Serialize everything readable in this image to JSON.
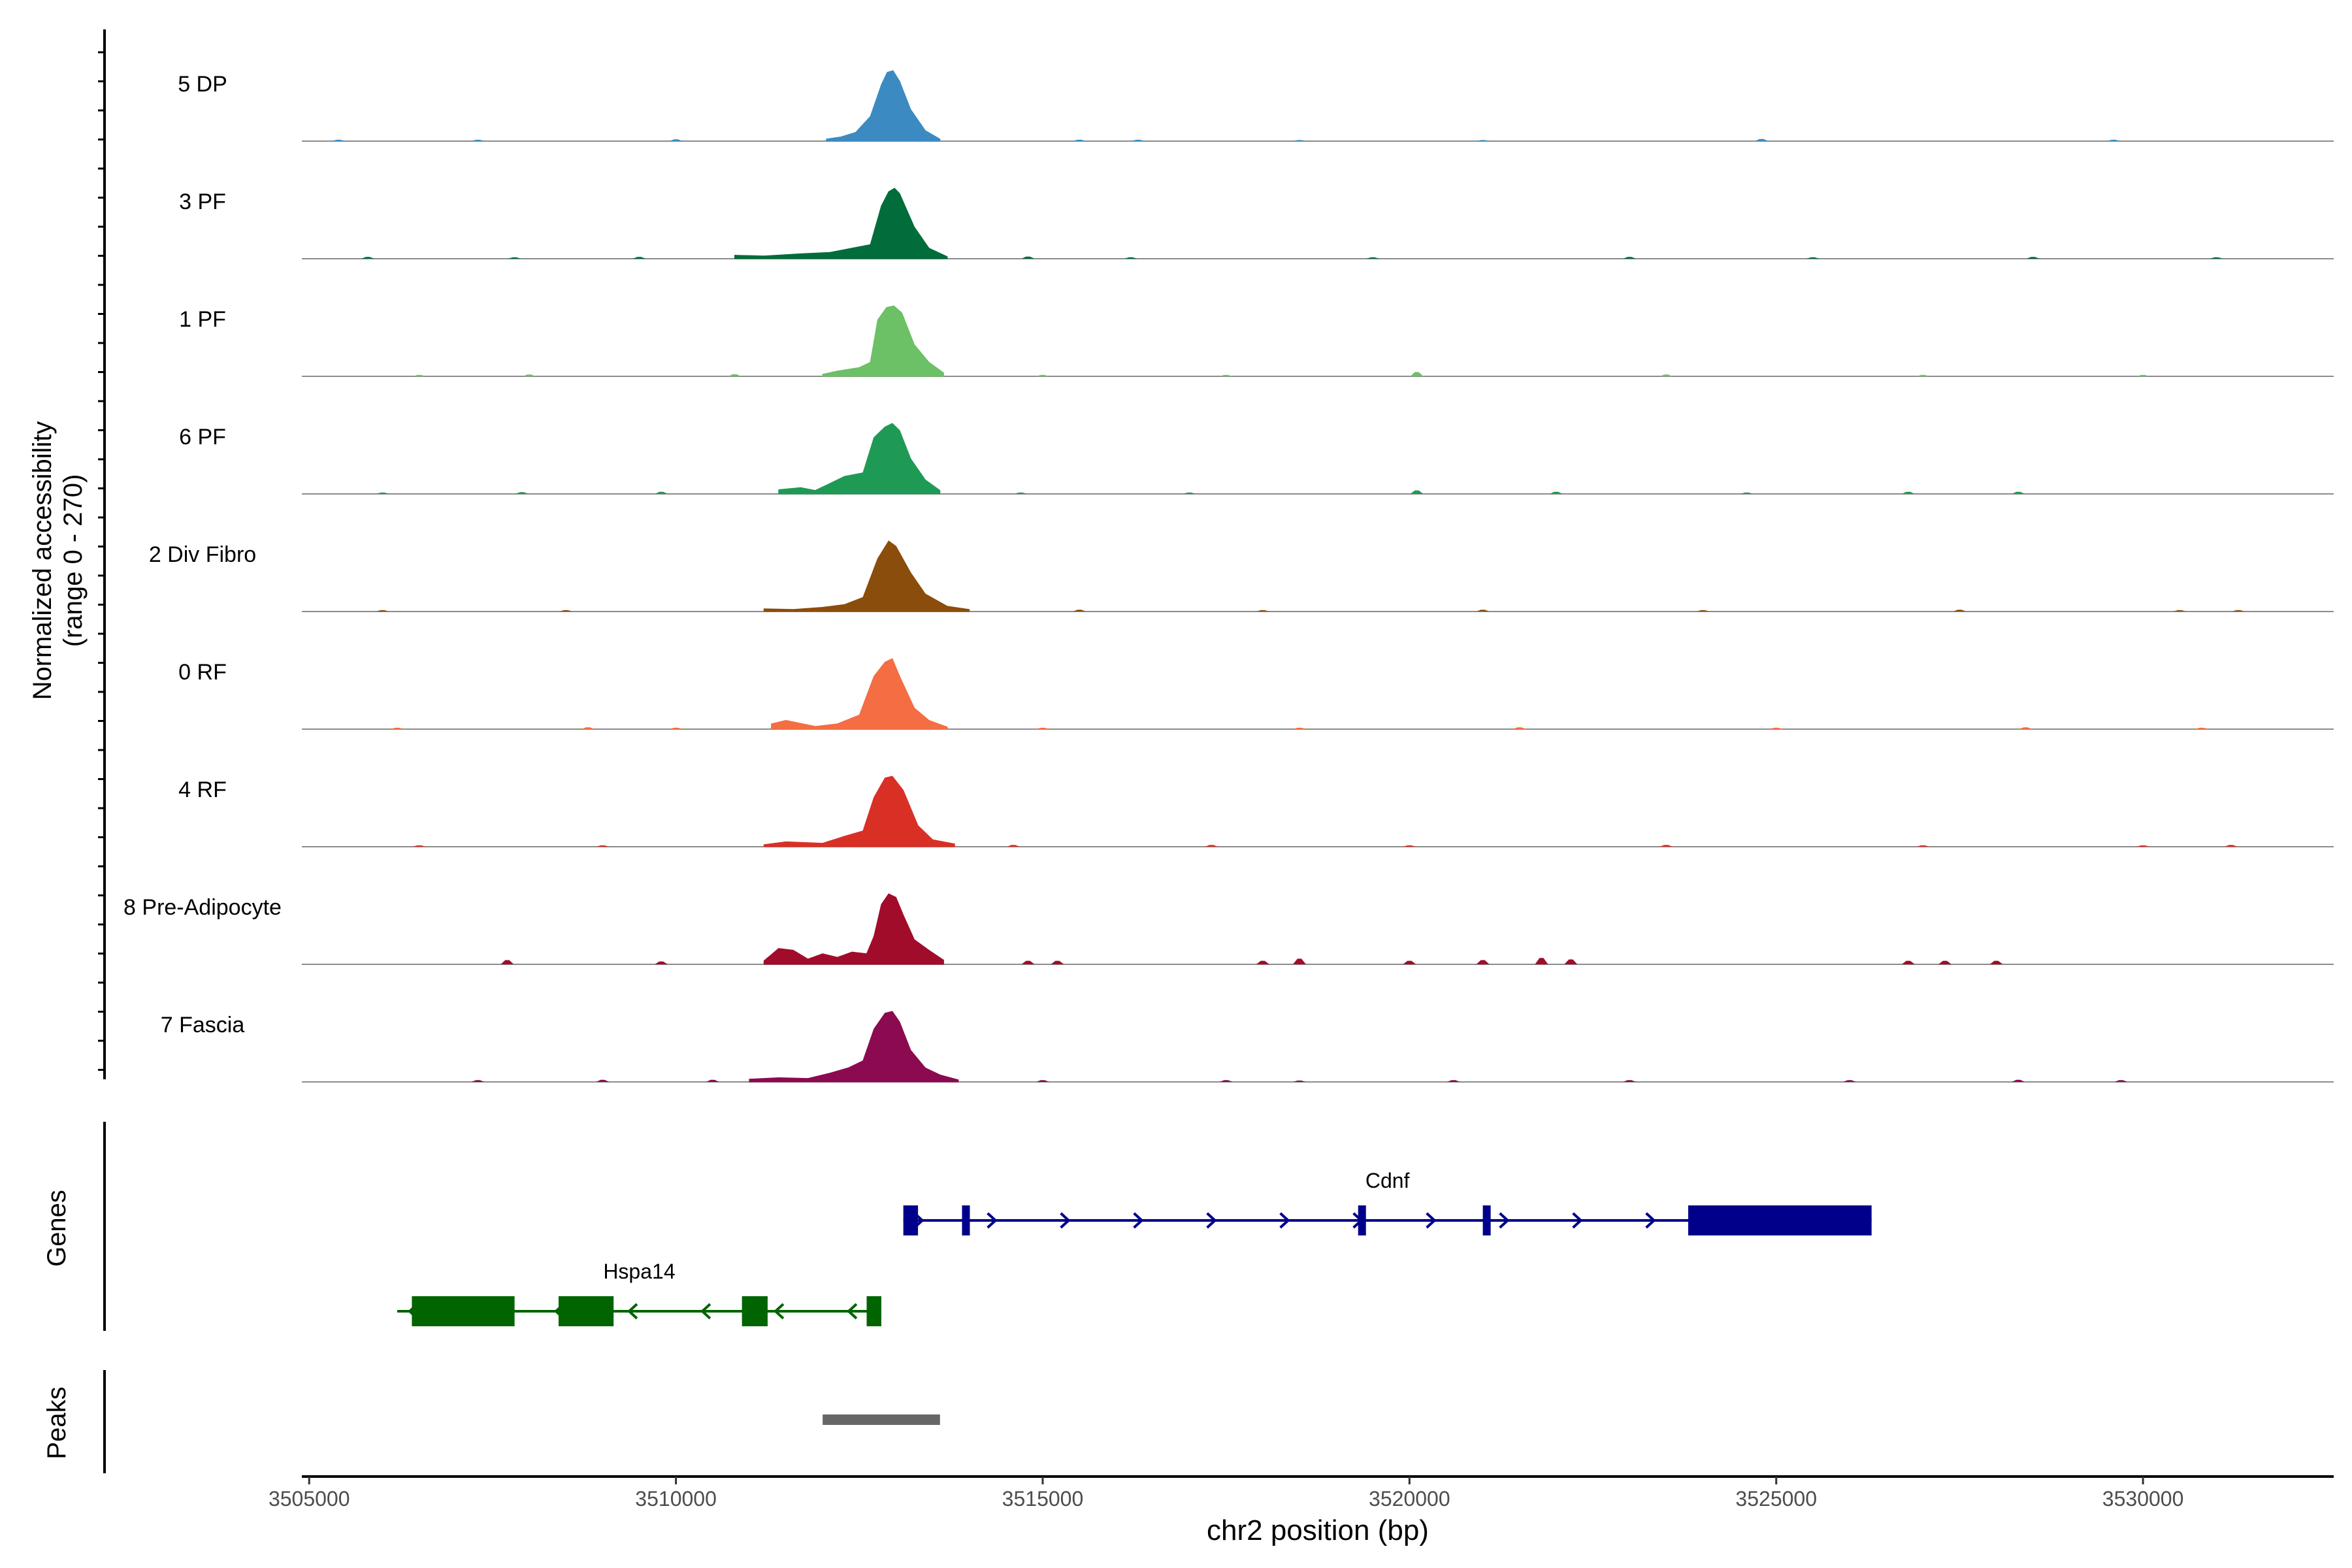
{
  "chart_data": {
    "type": "area",
    "title": "",
    "track_ylabel_line1": "Normalized accessibility",
    "track_ylabel_line2": "(range 0 - 270)",
    "y_range": [
      0,
      270
    ],
    "xlabel": "chr2 position (bp)",
    "xlim": [
      3504900,
      3532600
    ],
    "x_ticks": [
      3505000,
      3510000,
      3515000,
      3520000,
      3525000,
      3530000
    ],
    "x_tick_labels": [
      "3505000",
      "3510000",
      "3515000",
      "3520000",
      "3525000",
      "3530000"
    ],
    "series": [
      {
        "name": "5 DP",
        "color": "#3b8bc2",
        "peak": 200,
        "x": [
          3512050,
          3512250,
          3512450,
          3512650,
          3512800,
          3512880,
          3512960,
          3513050,
          3513200,
          3513400,
          3513600
        ],
        "y": [
          6,
          12,
          25,
          70,
          160,
          195,
          200,
          170,
          90,
          30,
          6
        ],
        "noise": [
          [
            3505400,
            4
          ],
          [
            3507300,
            4
          ],
          [
            3510000,
            5
          ],
          [
            3515500,
            4
          ],
          [
            3516300,
            4
          ],
          [
            3518500,
            3
          ],
          [
            3521000,
            3
          ],
          [
            3524800,
            6
          ],
          [
            3529600,
            4
          ]
        ]
      },
      {
        "name": "3 PF",
        "color": "#006d3a",
        "peak": 200,
        "x": [
          3510800,
          3511200,
          3511700,
          3512100,
          3512400,
          3512650,
          3512800,
          3512900,
          3512980,
          3513050,
          3513250,
          3513450,
          3513700
        ],
        "y": [
          10,
          8,
          14,
          18,
          30,
          40,
          150,
          190,
          200,
          185,
          90,
          30,
          6
        ],
        "noise": [
          [
            3505800,
            5
          ],
          [
            3507800,
            4
          ],
          [
            3509500,
            5
          ],
          [
            3514800,
            6
          ],
          [
            3516200,
            4
          ],
          [
            3519500,
            4
          ],
          [
            3523000,
            5
          ],
          [
            3525500,
            4
          ],
          [
            3528500,
            5
          ],
          [
            3531000,
            4
          ]
        ]
      },
      {
        "name": "1 PF",
        "color": "#6cc065",
        "peak": 200,
        "x": [
          3512000,
          3512200,
          3512500,
          3512650,
          3512750,
          3512870,
          3512970,
          3513080,
          3513250,
          3513450,
          3513650
        ],
        "y": [
          6,
          15,
          25,
          40,
          160,
          195,
          200,
          180,
          90,
          40,
          10
        ],
        "noise": [
          [
            3506500,
            4
          ],
          [
            3508000,
            5
          ],
          [
            3510800,
            6
          ],
          [
            3515000,
            4
          ],
          [
            3517500,
            4
          ],
          [
            3520100,
            12
          ],
          [
            3523500,
            5
          ],
          [
            3527000,
            4
          ],
          [
            3530000,
            4
          ]
        ]
      },
      {
        "name": "6 PF",
        "color": "#1f9a55",
        "peak": 200,
        "x": [
          3511400,
          3511700,
          3511900,
          3512100,
          3512300,
          3512550,
          3512700,
          3512850,
          3512950,
          3513050,
          3513200,
          3513400,
          3513600
        ],
        "y": [
          12,
          18,
          10,
          30,
          50,
          60,
          160,
          190,
          200,
          180,
          100,
          40,
          10
        ],
        "noise": [
          [
            3506000,
            4
          ],
          [
            3507900,
            5
          ],
          [
            3509800,
            6
          ],
          [
            3514700,
            4
          ],
          [
            3517000,
            4
          ],
          [
            3520100,
            10
          ],
          [
            3522000,
            6
          ],
          [
            3524600,
            4
          ],
          [
            3526800,
            6
          ],
          [
            3528300,
            6
          ]
        ]
      },
      {
        "name": "2 Div Fibro",
        "color": "#8b4d0b",
        "peak": 200,
        "x": [
          3511200,
          3511600,
          3512000,
          3512300,
          3512550,
          3512750,
          3512900,
          3513000,
          3513200,
          3513400,
          3513700,
          3514000
        ],
        "y": [
          8,
          6,
          12,
          20,
          40,
          150,
          200,
          185,
          110,
          50,
          15,
          6
        ],
        "noise": [
          [
            3506000,
            4
          ],
          [
            3508500,
            4
          ],
          [
            3515500,
            5
          ],
          [
            3518000,
            4
          ],
          [
            3521000,
            5
          ],
          [
            3524000,
            4
          ],
          [
            3527500,
            5
          ],
          [
            3530500,
            4
          ],
          [
            3531300,
            4
          ]
        ]
      },
      {
        "name": "0 RF",
        "color": "#f46d43",
        "peak": 200,
        "x": [
          3511300,
          3511500,
          3511900,
          3512200,
          3512500,
          3512700,
          3512850,
          3512950,
          3513050,
          3513250,
          3513450,
          3513700
        ],
        "y": [
          15,
          25,
          8,
          15,
          40,
          150,
          190,
          200,
          150,
          60,
          25,
          6
        ],
        "noise": [
          [
            3506200,
            4
          ],
          [
            3508800,
            5
          ],
          [
            3510000,
            4
          ],
          [
            3515000,
            4
          ],
          [
            3518500,
            4
          ],
          [
            3521500,
            5
          ],
          [
            3525000,
            4
          ],
          [
            3528400,
            5
          ],
          [
            3530800,
            4
          ]
        ]
      },
      {
        "name": "4 RF",
        "color": "#d93026",
        "peak": 200,
        "x": [
          3511200,
          3511500,
          3512000,
          3512300,
          3512550,
          3512700,
          3512850,
          3512950,
          3513100,
          3513300,
          3513500,
          3513800
        ],
        "y": [
          6,
          14,
          10,
          30,
          45,
          140,
          195,
          200,
          160,
          60,
          20,
          8
        ],
        "noise": [
          [
            3506500,
            4
          ],
          [
            3509000,
            4
          ],
          [
            3514600,
            5
          ],
          [
            3517300,
            5
          ],
          [
            3520000,
            4
          ],
          [
            3523500,
            5
          ],
          [
            3527000,
            4
          ],
          [
            3530000,
            4
          ],
          [
            3531200,
            5
          ]
        ]
      },
      {
        "name": "8 Pre-Adipocyte",
        "color": "#a10c2b",
        "peak": 200,
        "x": [
          3511200,
          3511400,
          3511600,
          3511800,
          3512000,
          3512200,
          3512400,
          3512600,
          3512700,
          3512800,
          3512900,
          3513000,
          3513100,
          3513250,
          3513450,
          3513650
        ],
        "y": [
          10,
          45,
          40,
          15,
          30,
          20,
          35,
          30,
          80,
          170,
          200,
          190,
          140,
          70,
          40,
          12
        ],
        "noise": [
          [
            3507700,
            12
          ],
          [
            3509800,
            8
          ],
          [
            3514800,
            10
          ],
          [
            3515200,
            10
          ],
          [
            3518000,
            10
          ],
          [
            3518500,
            16
          ],
          [
            3520000,
            10
          ],
          [
            3521000,
            12
          ],
          [
            3521800,
            18
          ],
          [
            3522200,
            14
          ],
          [
            3526800,
            10
          ],
          [
            3527300,
            10
          ],
          [
            3528000,
            10
          ]
        ]
      },
      {
        "name": "7 Fascia",
        "color": "#8b0a50",
        "peak": 200,
        "x": [
          3511000,
          3511400,
          3511800,
          3512100,
          3512350,
          3512550,
          3512700,
          3512850,
          3512950,
          3513050,
          3513200,
          3513400,
          3513600,
          3513850
        ],
        "y": [
          8,
          12,
          10,
          25,
          40,
          60,
          150,
          195,
          200,
          170,
          90,
          40,
          20,
          6
        ],
        "noise": [
          [
            3507300,
            5
          ],
          [
            3509000,
            6
          ],
          [
            3510500,
            6
          ],
          [
            3515000,
            5
          ],
          [
            3517500,
            5
          ],
          [
            3518500,
            4
          ],
          [
            3520600,
            5
          ],
          [
            3523000,
            5
          ],
          [
            3526000,
            5
          ],
          [
            3528300,
            6
          ],
          [
            3529700,
            5
          ]
        ]
      }
    ],
    "genes": [
      {
        "name": "Cdnf",
        "strand": "+",
        "color": "#00008b",
        "start": 3513100,
        "end": 3526300,
        "exons": [
          [
            3513100,
            3513300
          ],
          [
            3513900,
            3513950
          ],
          [
            3519300,
            3519400
          ],
          [
            3521000,
            3521100
          ],
          [
            3523800,
            3526300
          ]
        ]
      },
      {
        "name": "Hspa14",
        "strand": "-",
        "color": "#006400",
        "start": 3506200,
        "end": 3512800,
        "exons": [
          [
            3506400,
            3507800
          ],
          [
            3508400,
            3509150
          ],
          [
            3510900,
            3511250
          ],
          [
            3512600,
            3512800
          ]
        ]
      }
    ],
    "peaks": [
      [
        3512000,
        3513600
      ]
    ],
    "panel_labels": {
      "genes": "Genes",
      "peaks": "Peaks"
    }
  }
}
